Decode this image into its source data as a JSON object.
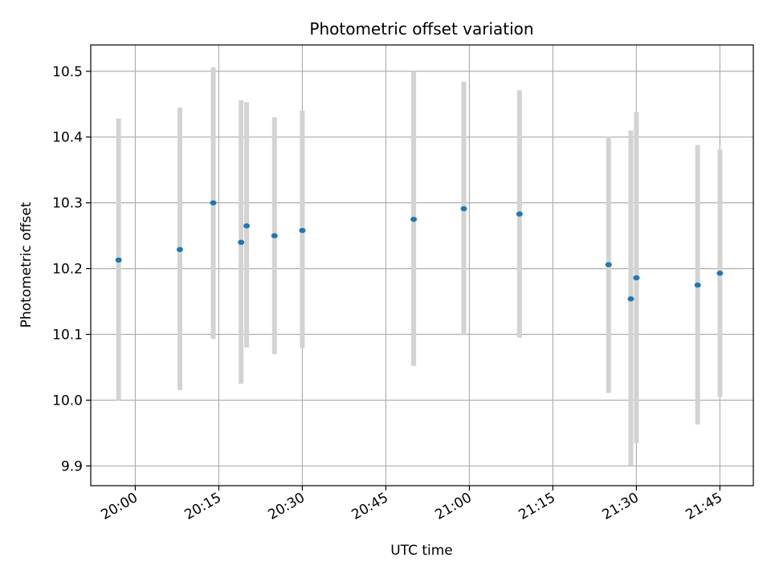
{
  "chart_data": {
    "type": "scatter",
    "title": "Photometric offset variation",
    "xlabel": "UTC time",
    "ylabel": "Photometric offset",
    "grid": true,
    "x_ticks": [
      "20:00",
      "20:15",
      "20:30",
      "20:45",
      "21:00",
      "21:15",
      "21:30",
      "21:45"
    ],
    "y_ticks": [
      "9.9",
      "10.0",
      "10.1",
      "10.2",
      "10.3",
      "10.4",
      "10.5"
    ],
    "xlim": [
      "19:52",
      "21:51"
    ],
    "ylim": [
      9.87,
      10.54
    ],
    "colors": {
      "points": "#1f77b4",
      "errorbars": "#d3d3d3",
      "grid": "#b0b0b0"
    },
    "points": [
      {
        "x": "19:57",
        "y": 10.213,
        "ylo": 10.0,
        "yhi": 10.428
      },
      {
        "x": "20:08",
        "y": 10.229,
        "ylo": 10.015,
        "yhi": 10.445
      },
      {
        "x": "20:14",
        "y": 10.3,
        "ylo": 10.093,
        "yhi": 10.506
      },
      {
        "x": "20:19",
        "y": 10.24,
        "ylo": 10.025,
        "yhi": 10.456
      },
      {
        "x": "20:20",
        "y": 10.265,
        "ylo": 10.08,
        "yhi": 10.453
      },
      {
        "x": "20:25",
        "y": 10.25,
        "ylo": 10.07,
        "yhi": 10.43
      },
      {
        "x": "20:30",
        "y": 10.258,
        "ylo": 10.079,
        "yhi": 10.44
      },
      {
        "x": "20:50",
        "y": 10.275,
        "ylo": 10.052,
        "yhi": 10.5
      },
      {
        "x": "20:59",
        "y": 10.291,
        "ylo": 10.099,
        "yhi": 10.484
      },
      {
        "x": "21:09",
        "y": 10.283,
        "ylo": 10.095,
        "yhi": 10.471
      },
      {
        "x": "21:25",
        "y": 10.206,
        "ylo": 10.011,
        "yhi": 10.401
      },
      {
        "x": "21:29",
        "y": 10.154,
        "ylo": 9.9,
        "yhi": 10.41
      },
      {
        "x": "21:30",
        "y": 10.186,
        "ylo": 9.935,
        "yhi": 10.438
      },
      {
        "x": "21:41",
        "y": 10.175,
        "ylo": 9.963,
        "yhi": 10.388
      },
      {
        "x": "21:45",
        "y": 10.193,
        "ylo": 10.005,
        "yhi": 10.381
      }
    ]
  }
}
